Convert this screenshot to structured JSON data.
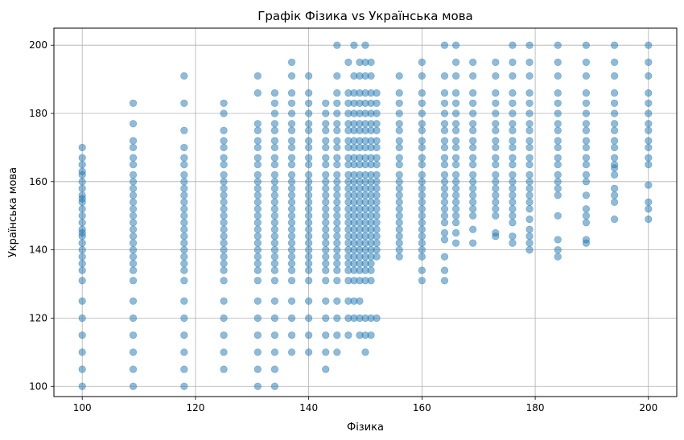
{
  "chart_data": {
    "type": "scatter",
    "title": "Графік Фізика vs Українська мова",
    "xlabel": "Фізика",
    "ylabel": "Українська мова",
    "xlim": [
      95,
      205
    ],
    "ylim": [
      97,
      205
    ],
    "xticks": [
      100,
      120,
      140,
      160,
      180,
      200
    ],
    "yticks": [
      100,
      120,
      140,
      160,
      180,
      200
    ],
    "grid": true,
    "point_color": "#1f77b4",
    "point_alpha": 0.5,
    "columns": [
      {
        "x": 100,
        "y": [
          100,
          105,
          110,
          115,
          120,
          125,
          131,
          134,
          136,
          138,
          140,
          142,
          144,
          145,
          146,
          148,
          150,
          152,
          154,
          155,
          156,
          158,
          160,
          162,
          163,
          165,
          167,
          170
        ]
      },
      {
        "x": 109,
        "y": [
          100,
          105,
          110,
          115,
          120,
          125,
          131,
          134,
          136,
          138,
          140,
          142,
          144,
          146,
          148,
          150,
          152,
          154,
          156,
          158,
          160,
          162,
          165,
          167,
          170,
          172,
          177,
          183
        ]
      },
      {
        "x": 118,
        "y": [
          100,
          105,
          110,
          115,
          120,
          125,
          131,
          134,
          136,
          138,
          140,
          142,
          144,
          146,
          148,
          150,
          152,
          154,
          156,
          158,
          160,
          162,
          165,
          167,
          170,
          175,
          183,
          191
        ]
      },
      {
        "x": 125,
        "y": [
          105,
          110,
          115,
          120,
          125,
          131,
          134,
          136,
          138,
          140,
          142,
          144,
          146,
          148,
          150,
          152,
          154,
          156,
          158,
          160,
          162,
          165,
          167,
          170,
          172,
          175,
          180,
          183
        ]
      },
      {
        "x": 131,
        "y": [
          100,
          105,
          110,
          115,
          120,
          125,
          131,
          134,
          136,
          138,
          140,
          142,
          144,
          146,
          148,
          150,
          152,
          154,
          156,
          158,
          160,
          162,
          165,
          167,
          170,
          172,
          175,
          177,
          186,
          191
        ]
      },
      {
        "x": 134,
        "y": [
          100,
          105,
          110,
          115,
          120,
          125,
          131,
          134,
          136,
          138,
          140,
          142,
          144,
          146,
          148,
          150,
          152,
          154,
          156,
          158,
          160,
          162,
          165,
          167,
          170,
          172,
          175,
          177,
          180,
          183,
          186
        ]
      },
      {
        "x": 137,
        "y": [
          110,
          115,
          120,
          125,
          131,
          134,
          136,
          138,
          140,
          142,
          144,
          146,
          148,
          150,
          152,
          154,
          156,
          158,
          160,
          162,
          165,
          167,
          170,
          172,
          175,
          177,
          180,
          183,
          186,
          191,
          195
        ]
      },
      {
        "x": 140,
        "y": [
          110,
          115,
          120,
          125,
          131,
          134,
          136,
          138,
          140,
          142,
          144,
          146,
          148,
          150,
          152,
          154,
          156,
          158,
          160,
          162,
          165,
          167,
          170,
          172,
          175,
          177,
          180,
          183,
          186,
          191
        ]
      },
      {
        "x": 143,
        "y": [
          105,
          110,
          115,
          120,
          125,
          131,
          134,
          136,
          138,
          140,
          142,
          144,
          146,
          148,
          150,
          152,
          154,
          156,
          158,
          160,
          162,
          165,
          167,
          170,
          172,
          175,
          177,
          180,
          183
        ]
      },
      {
        "x": 145,
        "y": [
          110,
          115,
          120,
          125,
          131,
          134,
          136,
          138,
          140,
          142,
          144,
          146,
          148,
          150,
          152,
          154,
          156,
          158,
          160,
          162,
          165,
          167,
          170,
          172,
          175,
          177,
          180,
          183,
          186,
          191,
          200
        ]
      },
      {
        "x": 147,
        "y": [
          115,
          120,
          125,
          131,
          134,
          136,
          138,
          140,
          142,
          144,
          146,
          148,
          150,
          152,
          154,
          156,
          158,
          160,
          162,
          165,
          167,
          170,
          172,
          175,
          177,
          180,
          183,
          186,
          195
        ]
      },
      {
        "x": 148,
        "y": [
          120,
          125,
          131,
          134,
          136,
          138,
          140,
          142,
          144,
          146,
          148,
          150,
          152,
          154,
          156,
          158,
          160,
          162,
          165,
          167,
          170,
          172,
          175,
          177,
          180,
          183,
          186,
          191,
          200
        ]
      },
      {
        "x": 149,
        "y": [
          115,
          120,
          125,
          131,
          134,
          136,
          138,
          140,
          142,
          144,
          146,
          148,
          150,
          152,
          154,
          156,
          158,
          160,
          162,
          165,
          167,
          170,
          172,
          175,
          177,
          180,
          183,
          186,
          191,
          195
        ]
      },
      {
        "x": 150,
        "y": [
          110,
          115,
          120,
          131,
          134,
          136,
          138,
          140,
          142,
          144,
          146,
          148,
          150,
          152,
          154,
          156,
          158,
          160,
          162,
          165,
          167,
          170,
          172,
          175,
          177,
          180,
          183,
          186,
          191,
          195,
          200
        ]
      },
      {
        "x": 151,
        "y": [
          115,
          120,
          131,
          134,
          136,
          138,
          140,
          142,
          144,
          146,
          148,
          150,
          152,
          154,
          156,
          158,
          160,
          162,
          165,
          167,
          170,
          172,
          175,
          177,
          180,
          183,
          186,
          191,
          195
        ]
      },
      {
        "x": 152,
        "y": [
          120,
          138,
          140,
          142,
          144,
          146,
          148,
          150,
          152,
          154,
          156,
          158,
          160,
          162,
          165,
          167,
          170,
          172,
          175,
          177,
          180,
          183,
          186
        ]
      },
      {
        "x": 156,
        "y": [
          138,
          140,
          142,
          144,
          146,
          148,
          150,
          152,
          154,
          156,
          158,
          160,
          162,
          165,
          167,
          170,
          172,
          175,
          177,
          180,
          183,
          186,
          191
        ]
      },
      {
        "x": 160,
        "y": [
          131,
          134,
          138,
          140,
          142,
          144,
          146,
          148,
          150,
          152,
          154,
          156,
          158,
          160,
          162,
          165,
          167,
          170,
          172,
          175,
          177,
          180,
          183,
          186,
          191,
          195
        ]
      },
      {
        "x": 164,
        "y": [
          131,
          134,
          138,
          143,
          145,
          148,
          150,
          152,
          154,
          156,
          158,
          160,
          162,
          165,
          167,
          170,
          172,
          175,
          177,
          180,
          183,
          186,
          191,
          200
        ]
      },
      {
        "x": 166,
        "y": [
          142,
          145,
          148,
          150,
          152,
          154,
          156,
          158,
          160,
          162,
          165,
          167,
          170,
          172,
          175,
          177,
          180,
          183,
          186,
          191,
          195,
          200
        ]
      },
      {
        "x": 169,
        "y": [
          142,
          146,
          150,
          152,
          154,
          156,
          158,
          160,
          162,
          165,
          167,
          170,
          172,
          175,
          177,
          180,
          183,
          186,
          191,
          195
        ]
      },
      {
        "x": 173,
        "y": [
          144,
          145,
          150,
          152,
          154,
          156,
          158,
          160,
          162,
          165,
          167,
          170,
          172,
          175,
          177,
          180,
          183,
          186,
          191,
          195
        ]
      },
      {
        "x": 176,
        "y": [
          142,
          144,
          148,
          150,
          152,
          154,
          156,
          158,
          160,
          162,
          165,
          167,
          170,
          172,
          175,
          177,
          180,
          183,
          186,
          191,
          195,
          200
        ]
      },
      {
        "x": 179,
        "y": [
          140,
          142,
          144,
          146,
          149,
          152,
          154,
          156,
          158,
          160,
          162,
          165,
          167,
          170,
          172,
          175,
          177,
          180,
          183,
          186,
          191,
          195,
          200
        ]
      },
      {
        "x": 184,
        "y": [
          138,
          140,
          143,
          150,
          156,
          158,
          160,
          162,
          165,
          167,
          170,
          172,
          175,
          177,
          180,
          183,
          186,
          191,
          195,
          200
        ]
      },
      {
        "x": 189,
        "y": [
          142,
          143,
          148,
          150,
          152,
          156,
          160,
          162,
          165,
          167,
          170,
          172,
          175,
          177,
          180,
          183,
          186,
          191,
          195,
          200
        ]
      },
      {
        "x": 194,
        "y": [
          149,
          154,
          156,
          158,
          162,
          164,
          165,
          167,
          170,
          172,
          175,
          177,
          180,
          183,
          186,
          191,
          195,
          200
        ]
      },
      {
        "x": 200,
        "y": [
          149,
          152,
          154,
          159,
          165,
          167,
          170,
          172,
          175,
          177,
          180,
          183,
          186,
          191,
          195,
          200
        ]
      }
    ]
  }
}
